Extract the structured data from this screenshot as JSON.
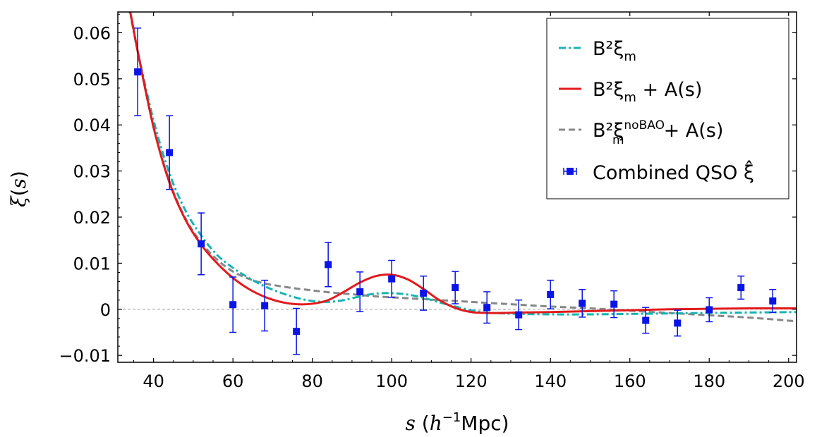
{
  "chart_data": {
    "type": "line",
    "title": "",
    "xlabel": "s (h⁻¹Mpc)",
    "ylabel": "ξ(s)",
    "xlim": [
      31,
      202
    ],
    "ylim": [
      -0.0115,
      0.0645
    ],
    "grid": false,
    "legend_position": "top-right",
    "x_ticks": [
      {
        "value": 40,
        "label": "40"
      },
      {
        "value": 60,
        "label": "60"
      },
      {
        "value": 80,
        "label": "80"
      },
      {
        "value": 100,
        "label": "100"
      },
      {
        "value": 120,
        "label": "120"
      },
      {
        "value": 140,
        "label": "140"
      },
      {
        "value": 160,
        "label": "160"
      },
      {
        "value": 180,
        "label": "180"
      },
      {
        "value": 200,
        "label": "200"
      }
    ],
    "y_ticks": [
      {
        "value": -0.01,
        "label": "−0.01"
      },
      {
        "value": 0,
        "label": "0"
      },
      {
        "value": 0.01,
        "label": "0.01"
      },
      {
        "value": 0.02,
        "label": "0.02"
      },
      {
        "value": 0.03,
        "label": "0.03"
      },
      {
        "value": 0.04,
        "label": "0.04"
      },
      {
        "value": 0.05,
        "label": "0.05"
      },
      {
        "value": 0.06,
        "label": "0.06"
      }
    ],
    "reference_line": {
      "y": 0,
      "color": "#999999",
      "style": "dashed"
    },
    "series": [
      {
        "name": "B²ξ_m",
        "color": "#17b3b3",
        "style": "dashdot",
        "x": [
          31,
          34,
          36,
          40,
          44,
          48,
          52,
          56,
          60,
          64,
          68,
          72,
          76,
          80,
          84,
          88,
          92,
          96,
          100,
          104,
          108,
          112,
          116,
          120,
          124,
          128,
          132,
          140,
          150,
          160,
          170,
          180,
          190,
          202
        ],
        "y": [
          0.075,
          0.0645,
          0.056,
          0.041,
          0.0295,
          0.0215,
          0.016,
          0.0118,
          0.009,
          0.0068,
          0.005,
          0.0036,
          0.0025,
          0.0018,
          0.0016,
          0.002,
          0.0028,
          0.0034,
          0.0035,
          0.0032,
          0.0025,
          0.0015,
          0.0006,
          -0.0002,
          -0.0007,
          -0.0009,
          -0.001,
          -0.0011,
          -0.0011,
          -0.001,
          -0.0009,
          -0.0008,
          -0.0007,
          -0.0006
        ]
      },
      {
        "name": "B²ξ_m + A(s)",
        "color": "#e31a1c",
        "style": "solid",
        "x": [
          31,
          34,
          36,
          40,
          44,
          48,
          52,
          56,
          60,
          64,
          68,
          72,
          76,
          80,
          84,
          88,
          92,
          96,
          100,
          104,
          108,
          112,
          116,
          120,
          124,
          128,
          132,
          140,
          150,
          160,
          170,
          180,
          190,
          202
        ],
        "y": [
          0.076,
          0.065,
          0.056,
          0.0395,
          0.0275,
          0.0195,
          0.014,
          0.01,
          0.0068,
          0.0044,
          0.0027,
          0.0016,
          0.0011,
          0.0012,
          0.002,
          0.0038,
          0.0058,
          0.0072,
          0.0075,
          0.0065,
          0.0044,
          0.002,
          0.0003,
          -0.0006,
          -0.0008,
          -0.0008,
          -0.0007,
          -0.0006,
          -0.0004,
          -0.0002,
          0.0,
          0.0001,
          0.0002,
          0.0002
        ]
      },
      {
        "name": "B²ξ_m^noBAO + A(s)",
        "color": "#888888",
        "style": "dashed",
        "x": [
          31,
          34,
          36,
          40,
          44,
          48,
          52,
          56,
          60,
          64,
          68,
          72,
          76,
          80,
          84,
          88,
          92,
          96,
          100,
          104,
          108,
          112,
          116,
          120,
          124,
          128,
          132,
          140,
          150,
          160,
          170,
          180,
          190,
          202
        ],
        "y": [
          0.076,
          0.065,
          0.056,
          0.0395,
          0.0278,
          0.0198,
          0.0145,
          0.0108,
          0.0082,
          0.0066,
          0.0056,
          0.005,
          0.0045,
          0.0041,
          0.0037,
          0.0034,
          0.0031,
          0.0028,
          0.0026,
          0.0024,
          0.0022,
          0.002,
          0.0018,
          0.0016,
          0.0014,
          0.0012,
          0.001,
          0.0006,
          0.0002,
          -0.0003,
          -0.0008,
          -0.0013,
          -0.0018,
          -0.0026
        ]
      }
    ],
    "points": {
      "name": "Combined QSO ξ̂",
      "color": "#0a14e6",
      "marker": "square",
      "x": [
        36,
        44,
        52,
        60,
        68,
        76,
        84,
        92,
        100,
        108,
        116,
        124,
        132,
        140,
        148,
        156,
        164,
        172,
        180,
        188,
        196
      ],
      "y": [
        0.0515,
        0.034,
        0.0142,
        0.001,
        0.0008,
        -0.0048,
        0.0097,
        0.0038,
        0.0066,
        0.0035,
        0.0047,
        0.0004,
        -0.0012,
        0.0032,
        0.0013,
        0.0011,
        -0.0024,
        -0.003,
        -0.0001,
        0.0047,
        0.0018
      ],
      "err": [
        0.0095,
        0.008,
        0.0067,
        0.006,
        0.0055,
        0.005,
        0.0048,
        0.0043,
        0.004,
        0.0037,
        0.0035,
        0.0034,
        0.0032,
        0.0031,
        0.003,
        0.0029,
        0.0028,
        0.0028,
        0.0026,
        0.0025,
        0.0025
      ]
    },
    "legend": [
      {
        "key": "bxi",
        "label": "B²ξ",
        "subscript": "m",
        "superscript": "",
        "suffix": ""
      },
      {
        "key": "bxi_a",
        "label": "B²ξ",
        "subscript": "m",
        "superscript": "",
        "suffix": "+ A(s)"
      },
      {
        "key": "nobao",
        "label": "B²ξ",
        "subscript": "m",
        "superscript": "noBAO",
        "suffix": "+ A(s)"
      },
      {
        "key": "qso",
        "label": "Combined QSO ξ̂",
        "subscript": "",
        "superscript": "",
        "suffix": ""
      }
    ]
  }
}
